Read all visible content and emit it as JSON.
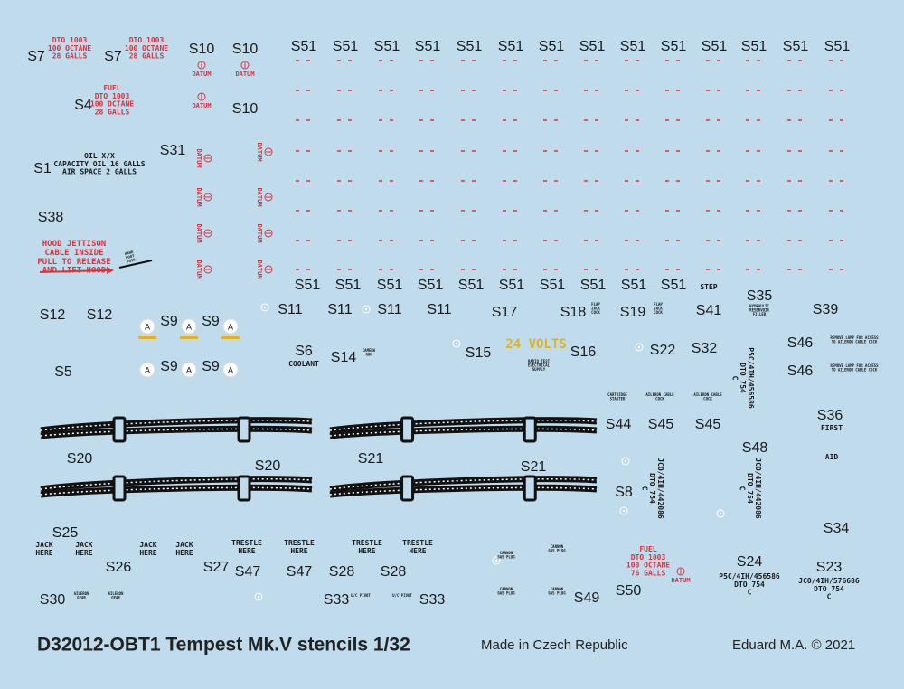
{
  "labels": [
    "S7",
    "S7",
    "S10",
    "S10",
    "S4",
    "S10",
    "S31",
    "S1",
    "S38",
    "S12",
    "S12",
    "S9",
    "S9",
    "S5",
    "S9",
    "S9",
    "S6",
    "S14",
    "S15",
    "S16",
    "S22",
    "S32",
    "S11",
    "S11",
    "S11",
    "S11",
    "S17",
    "S18",
    "S19",
    "S41",
    "S35",
    "S39",
    "S46",
    "S46",
    "S44",
    "S45",
    "S45",
    "S36",
    "S48",
    "S20",
    "S20",
    "S21",
    "S21",
    "S8",
    "S34",
    "S25",
    "S26",
    "S27",
    "S47",
    "S47",
    "S28",
    "S28",
    "S24",
    "S23",
    "S30",
    "S33",
    "S33",
    "S49",
    "S50",
    "S51",
    "S51",
    "S51",
    "S51",
    "S51",
    "S51",
    "S51",
    "S51",
    "S51",
    "S51",
    "S51",
    "S51",
    "S51",
    "S51",
    "S51",
    "S51",
    "S51",
    "S51",
    "S51",
    "S51",
    "S51",
    "S51",
    "S51",
    "S51"
  ],
  "stencils": [
    {
      "lines": [
        "DTO 1003",
        "100 OCTANE",
        "28 GALLS"
      ]
    },
    {
      "lines": [
        "DTO 1003",
        "100 OCTANE",
        "28 GALLS"
      ]
    },
    {
      "lines": [
        "FUEL",
        "DTO 1003",
        "100 OCTANE",
        "28 GALLS"
      ]
    },
    {
      "lines": [
        "OIL X/X",
        "CAPACITY OIL 16 GALLS",
        "AIR SPACE 2 GALLS"
      ]
    },
    {
      "lines": [
        "HOOD JETTISON",
        "CABLE INSIDE",
        "PULL TO RELEASE",
        "AND LIFT HOOD"
      ]
    },
    {
      "lines": [
        "COOLANT"
      ]
    },
    {
      "lines": [
        "24 VOLTS"
      ]
    },
    {
      "lines": [
        "STEP"
      ]
    },
    {
      "lines": [
        "FIRST"
      ]
    },
    {
      "lines": [
        "AID"
      ]
    },
    {
      "lines": [
        "P5C/4IH/456586",
        "DTO 754",
        "C"
      ]
    },
    {
      "lines": [
        "JCO/4IH/576686",
        "DTO 754",
        "C"
      ]
    },
    {
      "lines": [
        "FUEL",
        "DTO 1003",
        "100 OCTANE",
        "76 GALLS"
      ]
    },
    {
      "lines": [
        "JACK",
        "HERE"
      ]
    },
    {
      "lines": [
        "JACK",
        "HERE"
      ]
    },
    {
      "lines": [
        "JACK",
        "HERE"
      ]
    },
    {
      "lines": [
        "JACK",
        "HERE"
      ]
    },
    {
      "lines": [
        "TRESTLE",
        "HERE"
      ]
    },
    {
      "lines": [
        "TRESTLE",
        "HERE"
      ]
    },
    {
      "lines": [
        "TRESTLE",
        "HERE"
      ]
    },
    {
      "lines": [
        "TRESTLE",
        "HERE"
      ]
    },
    {
      "lines": [
        "P5C/4IH/456586",
        "DTO 754",
        "C"
      ]
    },
    {
      "lines": [
        "JCO/4IH/442086",
        "DTO 754",
        "C"
      ]
    },
    {
      "lines": [
        "JCO/4IH/442086",
        "DTO 754",
        "C"
      ]
    },
    {
      "lines": [
        "CAMERA",
        "GUN"
      ]
    },
    {
      "lines": [
        "RADIO TEST",
        "ELECTRICAL",
        "SUPPLY"
      ]
    },
    {
      "lines": [
        "CARTRIDGE",
        "STARTER"
      ]
    },
    {
      "lines": [
        "AILERON CABLE",
        "COCK"
      ]
    },
    {
      "lines": [
        "AILERON CABLE",
        "COCK"
      ]
    },
    {
      "lines": [
        "REMOVE LAMP FOR ACCESS",
        "TO AILERON CABLE COCK"
      ]
    },
    {
      "lines": [
        "REMOVE LAMP FOR ACCESS",
        "TO AILERON CABLE COCK"
      ]
    },
    {
      "lines": [
        "AILERON",
        "GEAR"
      ]
    },
    {
      "lines": [
        "AILERON",
        "GEAR"
      ]
    },
    {
      "lines": [
        "U/C PIVOT"
      ]
    },
    {
      "lines": [
        "U/C PIVOT"
      ]
    },
    {
      "lines": [
        "CANNON",
        "GAS PLUG"
      ]
    },
    {
      "lines": [
        "CANNON",
        "GAS PLUG"
      ]
    },
    {
      "lines": [
        "CANNON",
        "GAS PLUG"
      ]
    },
    {
      "lines": [
        "CANNON",
        "GAS PLUG"
      ]
    },
    {
      "lines": [
        "HYDRAULIC",
        "RESERVOIR",
        "FILLER"
      ]
    },
    {
      "lines": [
        "FLAP",
        "JACK",
        "COCK"
      ]
    },
    {
      "lines": [
        "FLAP",
        "JACK",
        "COCK"
      ]
    },
    {
      "lines": [
        "HAND",
        "FOOT",
        "PUSH"
      ]
    }
  ],
  "datums": [
    "DATUM",
    "DATUM",
    "DATUM",
    "DATUM",
    "DATUM",
    "DATUM",
    "DATUM",
    "DATUM",
    "DATUM",
    "DATUM",
    "DATUM",
    "DATUM"
  ],
  "badges": [
    "A",
    "A",
    "A",
    "A",
    "A",
    "A"
  ],
  "footer": {
    "title": "D32012-OBT1 Tempest Mk.V stencils 1/32",
    "origin": "Made in Czech Republic",
    "copyright": "Eduard M.A. © 2021"
  }
}
